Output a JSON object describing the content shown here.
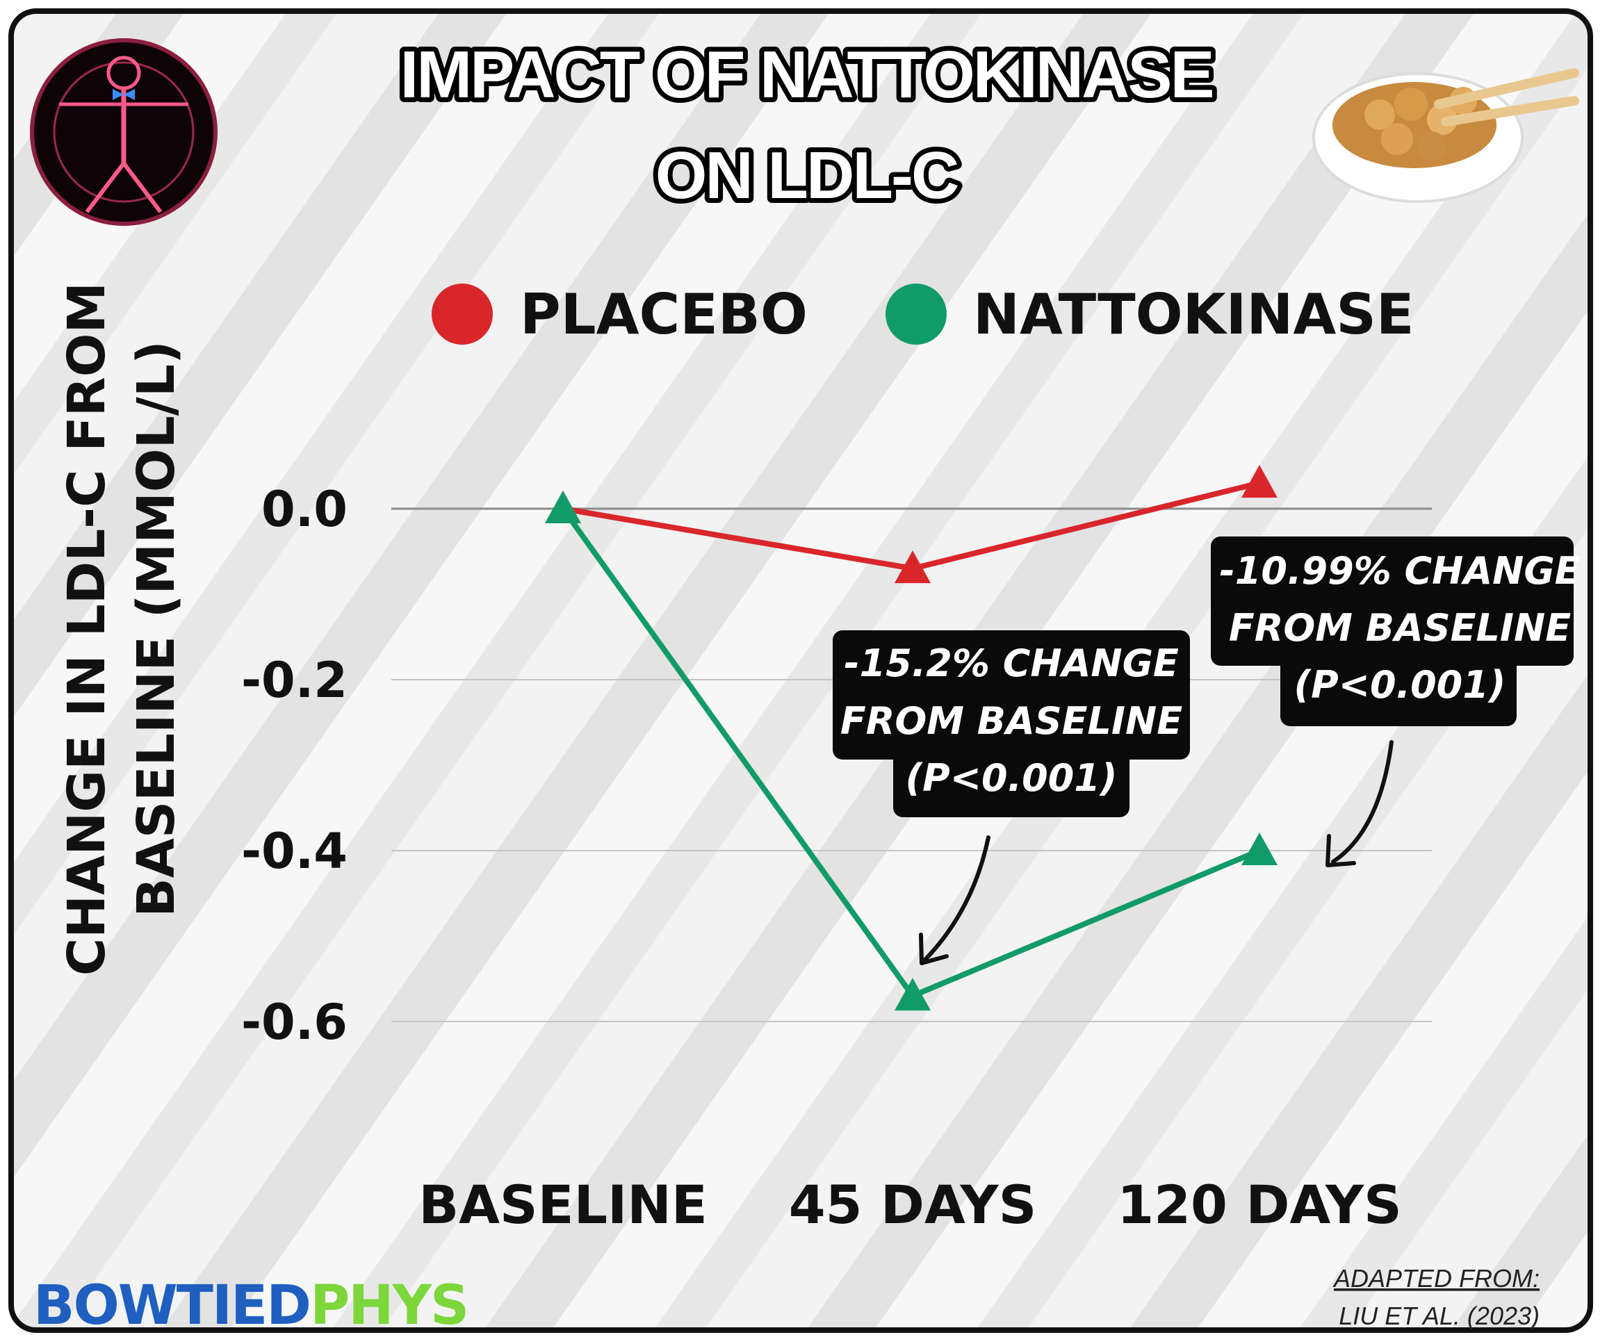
{
  "title_lines": [
    "IMPACT OF NATTOKINASE",
    "ON LDL-C"
  ],
  "legend": [
    {
      "label": "PLACEBO",
      "color": "#d9262b"
    },
    {
      "label": "NATTOKINASE",
      "color": "#119b68"
    }
  ],
  "ylabel_lines": [
    "CHANGE IN LDL-C FROM",
    "BASELINE (MMOL/L)"
  ],
  "chart_data": {
    "type": "line",
    "title": "IMPACT OF NATTOKINASE ON LDL-C",
    "categories": [
      "BASELINE",
      "45 DAYS",
      "120 DAYS"
    ],
    "series": [
      {
        "name": "PLACEBO",
        "color": "#d9262b",
        "marker": "triangle",
        "values": [
          0.0,
          -0.07,
          0.03
        ]
      },
      {
        "name": "NATTOKINASE",
        "color": "#119b68",
        "marker": "triangle",
        "values": [
          0.0,
          -0.57,
          -0.4
        ]
      }
    ],
    "yticks": [
      0.0,
      -0.2,
      -0.4,
      -0.6
    ],
    "ytick_labels": [
      "0.0",
      "-0.2",
      "-0.4",
      "-0.6"
    ],
    "ylim": [
      -0.6,
      0.0
    ],
    "ylabel": "CHANGE IN LDL-C FROM BASELINE (MMOL/L)",
    "xlabel": "",
    "grid": true,
    "legend_position": "top"
  },
  "annotations": [
    {
      "lines": [
        "-15.2% CHANGE",
        "FROM BASELINE",
        "(P<0.001)"
      ]
    },
    {
      "lines": [
        "-10.99% CHANGE",
        "FROM BASELINE",
        "(P<0.001)"
      ]
    }
  ],
  "source": {
    "line1": "ADAPTED FROM:",
    "line2": "LIU ET AL. (2023)"
  },
  "brand": {
    "part1": "BOWTIED",
    "part2": "PHYS",
    "color1": "#1f5fc0",
    "color2": "#7dd63a"
  }
}
